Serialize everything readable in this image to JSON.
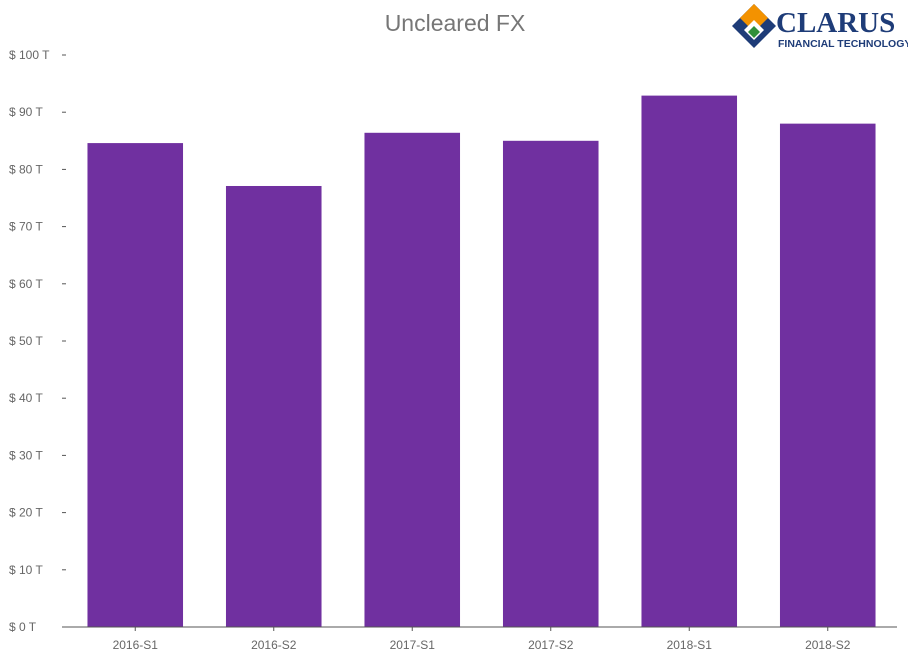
{
  "chart_data": {
    "type": "bar",
    "title": "Uncleared FX",
    "xlabel": "",
    "ylabel": "",
    "categories": [
      "2016-S1",
      "2016-S2",
      "2017-S1",
      "2017-S2",
      "2018-S1",
      "2018-S2"
    ],
    "values": [
      84.6,
      77.1,
      86.4,
      85.0,
      92.9,
      88.0
    ],
    "ylim": [
      0,
      100
    ],
    "yticks": [
      "$ 0 T",
      "$ 10 T",
      "$ 20 T",
      "$ 30 T",
      "$ 40 T",
      "$ 50 T",
      "$ 60 T",
      "$ 70 T",
      "$ 80 T",
      "$ 90 T",
      "$ 100 T"
    ],
    "ytick_values": [
      0,
      10,
      20,
      30,
      40,
      50,
      60,
      70,
      80,
      90,
      100
    ],
    "grid": false,
    "legend": "none",
    "bar_color": "#7030a0",
    "axis_color": "#555555"
  },
  "logo": {
    "name": "CLARUS",
    "tagline": "FINANCIAL TECHNOLOGY",
    "brand_color": "#1e3c78",
    "mark_colors": [
      "#f39200",
      "#1e3c78",
      "#2f8f3a"
    ]
  }
}
